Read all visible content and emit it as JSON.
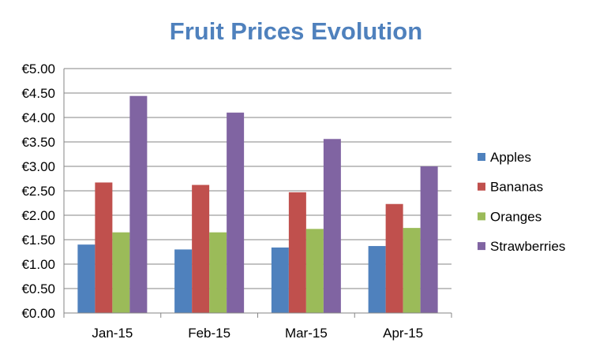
{
  "chart_data": {
    "type": "bar",
    "title": "Fruit Prices Evolution",
    "title_color": "#4F81BD",
    "xlabel": "",
    "ylabel": "",
    "categories": [
      "Jan-15",
      "Feb-15",
      "Mar-15",
      "Apr-15"
    ],
    "series": [
      {
        "name": "Apples",
        "color": "#4F81BD",
        "values": [
          1.4,
          1.3,
          1.34,
          1.37
        ]
      },
      {
        "name": "Bananas",
        "color": "#C0504D",
        "values": [
          2.67,
          2.62,
          2.47,
          2.23
        ]
      },
      {
        "name": "Oranges",
        "color": "#9BBB59",
        "values": [
          1.65,
          1.65,
          1.72,
          1.74
        ]
      },
      {
        "name": "Strawberries",
        "color": "#8064A2",
        "values": [
          4.44,
          4.1,
          3.56,
          3.0
        ]
      }
    ],
    "ylim": [
      0,
      5
    ],
    "y_ticks": [
      0,
      0.5,
      1,
      1.5,
      2,
      2.5,
      3,
      3.5,
      4,
      4.5,
      5
    ],
    "y_tick_labels": [
      "€0.00",
      "€0.50",
      "€1.00",
      "€1.50",
      "€2.00",
      "€2.50",
      "€3.00",
      "€3.50",
      "€4.00",
      "€4.50",
      "€5.00"
    ],
    "grid": true,
    "legend_position": "right"
  }
}
